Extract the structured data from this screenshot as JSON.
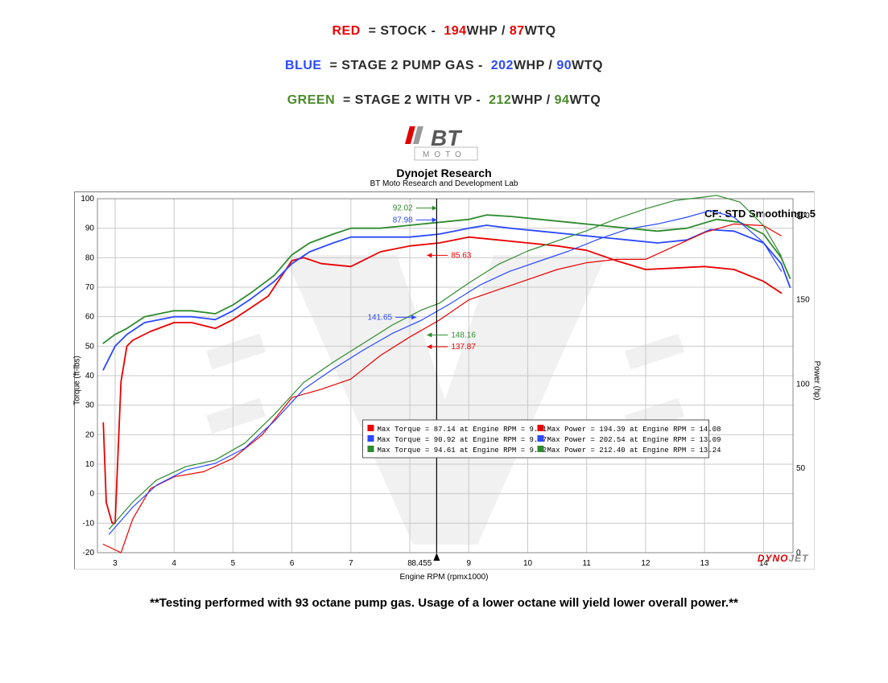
{
  "header": {
    "lines": [
      {
        "label": "RED",
        "label_color": "#ea0000",
        "eq": "  = STOCK -  ",
        "whp": "194",
        "whp_unit": "WHP / ",
        "wtq": "87",
        "wtq_unit": "WTQ",
        "stat_color": "#ea0000"
      },
      {
        "label": "BLUE",
        "label_color": "#2b49ff",
        "eq": "  = STAGE 2 PUMP GAS -  ",
        "whp": "202",
        "whp_unit": "WHP / ",
        "wtq": "90",
        "wtq_unit": "WTQ",
        "stat_color": "#2b49ff"
      },
      {
        "label": "GREEN",
        "label_color": "#4a8a2a",
        "eq": "  = STAGE 2 WITH VP -  ",
        "whp": "212",
        "whp_unit": "WHP / ",
        "wtq": "94",
        "wtq_unit": "WTQ",
        "stat_color": "#4a8a2a"
      }
    ],
    "neutral_color": "#2b2b2b"
  },
  "logo": {
    "text_main": "BT",
    "text_sub": "MOTO",
    "red": "#e10000",
    "gray": "#9a9a9a",
    "dark": "#5a5a5a"
  },
  "chart": {
    "title": "Dynojet Research",
    "subtitle": "BT Moto Research and Development Lab",
    "cf_text": "CF: STD Smoothing: 5",
    "x_label": "Engine RPM (rpmx1000)",
    "y_left_label": "Torque (ft-lbs)",
    "y_right_label": "Power (hp)",
    "cursor_x": 8.455,
    "cursor_label": "8.455",
    "watermark_brand": {
      "part1": "DYNO",
      "part2": "JET"
    },
    "xlim": [
      2.7,
      14.5
    ],
    "ylim_left": [
      -20,
      100
    ],
    "ylim_right": [
      0,
      210
    ],
    "xticks": [
      3,
      4,
      5,
      6,
      7,
      8,
      9,
      10,
      11,
      12,
      13,
      14
    ],
    "yticks_left": [
      -20,
      -10,
      0,
      10,
      20,
      30,
      40,
      50,
      60,
      70,
      80,
      90,
      100
    ],
    "yticks_right": [
      0,
      50,
      100,
      150,
      200
    ],
    "grid_color": "#c9c9c9",
    "bg": "#ffffff",
    "axis_font": 10,
    "annotations": [
      {
        "text": "92.02",
        "color": "#2e8b2e",
        "x": 8.05,
        "y_l": 96
      },
      {
        "text": "87.98",
        "color": "#2b49ff",
        "x": 8.05,
        "y_l": 92
      },
      {
        "text": "85.63",
        "color": "#ea0000",
        "x": 8.7,
        "y_l": 80
      },
      {
        "text": "141.65",
        "color": "#2b49ff",
        "x": 7.7,
        "y_l": 59
      },
      {
        "text": "148.16",
        "color": "#2e8b2e",
        "x": 8.7,
        "y_l": 53
      },
      {
        "text": "137.87",
        "color": "#ea0000",
        "x": 8.7,
        "y_l": 49
      }
    ],
    "series": {
      "torque": {
        "red": {
          "color": "#ea0000",
          "w": 1.8,
          "pts": [
            [
              2.8,
              24
            ],
            [
              2.85,
              -3
            ],
            [
              2.95,
              -10
            ],
            [
              3.0,
              -10
            ],
            [
              3.1,
              38
            ],
            [
              3.2,
              50
            ],
            [
              3.3,
              52
            ],
            [
              3.6,
              55
            ],
            [
              4.0,
              58
            ],
            [
              4.3,
              58
            ],
            [
              4.7,
              56
            ],
            [
              5.0,
              59
            ],
            [
              5.3,
              63
            ],
            [
              5.6,
              67
            ],
            [
              6.0,
              79
            ],
            [
              6.2,
              80
            ],
            [
              6.5,
              78
            ],
            [
              7.0,
              77
            ],
            [
              7.5,
              82
            ],
            [
              8.0,
              84
            ],
            [
              8.5,
              85
            ],
            [
              9.0,
              87
            ],
            [
              9.5,
              86
            ],
            [
              10.0,
              85
            ],
            [
              10.5,
              84
            ],
            [
              11.0,
              82.5
            ],
            [
              11.5,
              79
            ],
            [
              12.0,
              76
            ],
            [
              12.5,
              76.5
            ],
            [
              13.0,
              77
            ],
            [
              13.5,
              76
            ],
            [
              14.0,
              72
            ],
            [
              14.3,
              68
            ]
          ]
        },
        "blue": {
          "color": "#2b49ff",
          "w": 1.8,
          "pts": [
            [
              2.8,
              42
            ],
            [
              3.0,
              50
            ],
            [
              3.2,
              54
            ],
            [
              3.5,
              58
            ],
            [
              4.0,
              60
            ],
            [
              4.3,
              60
            ],
            [
              4.7,
              59
            ],
            [
              5.0,
              62
            ],
            [
              5.3,
              66
            ],
            [
              5.7,
              72
            ],
            [
              6.0,
              78
            ],
            [
              6.3,
              82
            ],
            [
              6.7,
              85
            ],
            [
              7.0,
              87
            ],
            [
              7.5,
              87
            ],
            [
              8.0,
              87
            ],
            [
              8.5,
              88
            ],
            [
              9.0,
              90
            ],
            [
              9.3,
              91
            ],
            [
              9.7,
              90
            ],
            [
              10.2,
              89
            ],
            [
              10.7,
              88
            ],
            [
              11.2,
              87
            ],
            [
              11.7,
              86
            ],
            [
              12.2,
              85
            ],
            [
              12.7,
              86
            ],
            [
              13.1,
              89.5
            ],
            [
              13.5,
              89
            ],
            [
              14.0,
              85
            ],
            [
              14.3,
              78
            ],
            [
              14.45,
              70
            ]
          ]
        },
        "green": {
          "color": "#2e8b2e",
          "w": 1.8,
          "pts": [
            [
              2.8,
              51
            ],
            [
              3.0,
              54
            ],
            [
              3.2,
              56
            ],
            [
              3.5,
              60
            ],
            [
              4.0,
              62
            ],
            [
              4.3,
              62
            ],
            [
              4.7,
              61
            ],
            [
              5.0,
              64
            ],
            [
              5.3,
              68
            ],
            [
              5.7,
              74
            ],
            [
              6.0,
              81
            ],
            [
              6.3,
              85
            ],
            [
              6.7,
              88
            ],
            [
              7.0,
              90
            ],
            [
              7.5,
              90
            ],
            [
              8.0,
              91
            ],
            [
              8.5,
              92
            ],
            [
              9.0,
              93
            ],
            [
              9.3,
              94.5
            ],
            [
              9.7,
              94
            ],
            [
              10.2,
              93
            ],
            [
              10.7,
              92
            ],
            [
              11.2,
              91
            ],
            [
              11.7,
              90
            ],
            [
              12.2,
              89
            ],
            [
              12.7,
              90
            ],
            [
              13.2,
              93
            ],
            [
              13.6,
              92
            ],
            [
              14.0,
              88
            ],
            [
              14.3,
              80
            ],
            [
              14.45,
              73
            ]
          ]
        }
      },
      "power": {
        "red": {
          "color": "#ea0000",
          "w": 1.2,
          "pts": [
            [
              2.8,
              5
            ],
            [
              3.1,
              0
            ],
            [
              3.3,
              20
            ],
            [
              3.6,
              38
            ],
            [
              4.0,
              45
            ],
            [
              4.5,
              48
            ],
            [
              5.0,
              56
            ],
            [
              5.5,
              70
            ],
            [
              6.0,
              92
            ],
            [
              6.5,
              97
            ],
            [
              7.0,
              103
            ],
            [
              7.5,
              117
            ],
            [
              8.0,
              128
            ],
            [
              8.5,
              138
            ],
            [
              9.0,
              150
            ],
            [
              9.5,
              156
            ],
            [
              10.0,
              162
            ],
            [
              10.5,
              168
            ],
            [
              11.0,
              172
            ],
            [
              11.5,
              174
            ],
            [
              12.0,
              174
            ],
            [
              12.5,
              182
            ],
            [
              13.0,
              190
            ],
            [
              13.5,
              195
            ],
            [
              14.0,
              194
            ],
            [
              14.3,
              188
            ]
          ]
        },
        "blue": {
          "color": "#2b49ff",
          "w": 1.2,
          "pts": [
            [
              2.9,
              11
            ],
            [
              3.3,
              27
            ],
            [
              3.7,
              40
            ],
            [
              4.2,
              49
            ],
            [
              4.7,
              53
            ],
            [
              5.2,
              62
            ],
            [
              5.7,
              78
            ],
            [
              6.2,
              97
            ],
            [
              6.7,
              109
            ],
            [
              7.2,
              120
            ],
            [
              7.7,
              130
            ],
            [
              8.2,
              138
            ],
            [
              8.7,
              148
            ],
            [
              9.2,
              159
            ],
            [
              9.7,
              167
            ],
            [
              10.2,
              173
            ],
            [
              10.7,
              179
            ],
            [
              11.2,
              186
            ],
            [
              11.7,
              192
            ],
            [
              12.2,
              195
            ],
            [
              12.7,
              199
            ],
            [
              13.1,
              203
            ],
            [
              13.5,
              199
            ],
            [
              14.0,
              184
            ],
            [
              14.3,
              167
            ]
          ]
        },
        "green": {
          "color": "#2e8b2e",
          "w": 1.2,
          "pts": [
            [
              2.9,
              14
            ],
            [
              3.3,
              30
            ],
            [
              3.7,
              43
            ],
            [
              4.2,
              51
            ],
            [
              4.7,
              55
            ],
            [
              5.2,
              65
            ],
            [
              5.7,
              82
            ],
            [
              6.2,
              101
            ],
            [
              6.7,
              113
            ],
            [
              7.2,
              124
            ],
            [
              7.7,
              135
            ],
            [
              8.2,
              144
            ],
            [
              8.5,
              148
            ],
            [
              9.0,
              160
            ],
            [
              9.5,
              171
            ],
            [
              10.0,
              179
            ],
            [
              10.5,
              185
            ],
            [
              11.0,
              191
            ],
            [
              11.5,
              198
            ],
            [
              12.0,
              204
            ],
            [
              12.5,
              209
            ],
            [
              13.0,
              211
            ],
            [
              13.2,
              212
            ],
            [
              13.6,
              208
            ],
            [
              14.0,
              194
            ],
            [
              14.3,
              176
            ]
          ]
        }
      }
    },
    "legend": {
      "rows": [
        {
          "sw": "#ea0000",
          "left": "Max Torque = 87.14 at Engine RPM = 9.11",
          "right": "Max Power = 194.39 at Engine RPM = 14.08"
        },
        {
          "sw": "#2b49ff",
          "left": "Max Torque = 90.92 at Engine RPM = 9.27",
          "right": "Max Power = 202.54 at Engine RPM = 13.09"
        },
        {
          "sw": "#2e8b2e",
          "left": "Max Torque = 94.61 at Engine RPM = 9.32",
          "right": "Max Power = 212.40 at Engine RPM = 13.24"
        }
      ]
    }
  },
  "footnote": "**Testing performed with 93 octane pump gas.  Usage of a lower octane will yield lower overall power.**"
}
